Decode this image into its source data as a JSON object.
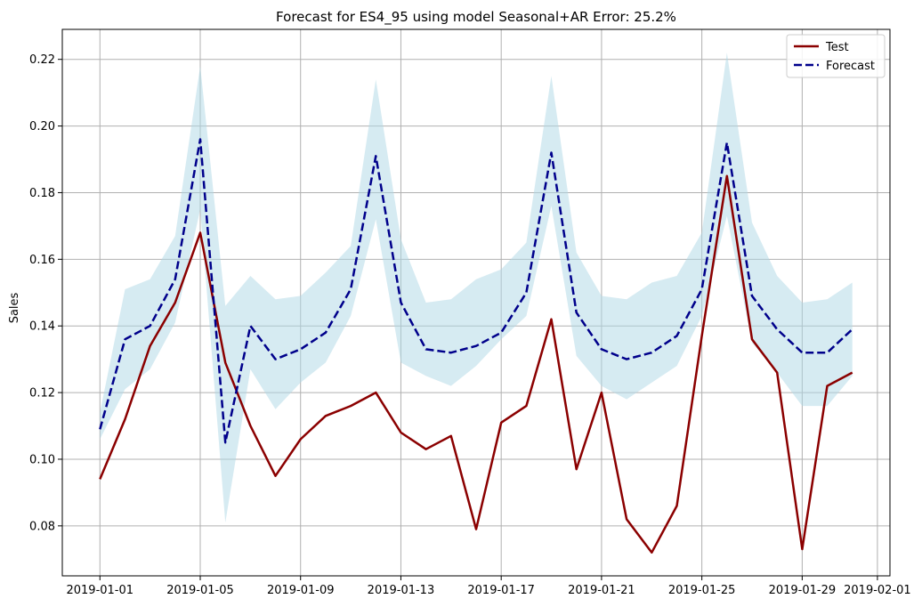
{
  "chart_data": {
    "type": "line",
    "title": "Forecast for ES4_95 using model Seasonal+AR Error: 25.2%",
    "xlabel": "",
    "ylabel": "Sales",
    "x_ticks": [
      "2019-01-01",
      "2019-01-05",
      "2019-01-09",
      "2019-01-13",
      "2019-01-17",
      "2019-01-21",
      "2019-01-25",
      "2019-01-29",
      "2019-02-01"
    ],
    "y_ticks": [
      "0.08",
      "0.10",
      "0.12",
      "0.14",
      "0.16",
      "0.18",
      "0.20",
      "0.22"
    ],
    "y_range": [
      0.065,
      0.229
    ],
    "grid": true,
    "legend_position": "top-right",
    "x": [
      "2019-01-01",
      "2019-01-02",
      "2019-01-03",
      "2019-01-04",
      "2019-01-05",
      "2019-01-06",
      "2019-01-07",
      "2019-01-08",
      "2019-01-09",
      "2019-01-10",
      "2019-01-11",
      "2019-01-12",
      "2019-01-13",
      "2019-01-14",
      "2019-01-15",
      "2019-01-16",
      "2019-01-17",
      "2019-01-18",
      "2019-01-19",
      "2019-01-20",
      "2019-01-21",
      "2019-01-22",
      "2019-01-23",
      "2019-01-24",
      "2019-01-25",
      "2019-01-26",
      "2019-01-27",
      "2019-01-28",
      "2019-01-29",
      "2019-01-30",
      "2019-01-31"
    ],
    "series": [
      {
        "name": "Test",
        "color": "#8b0000",
        "style": "solid",
        "values": [
          0.094,
          0.112,
          0.134,
          0.147,
          0.168,
          0.129,
          0.11,
          0.095,
          0.106,
          0.113,
          0.116,
          0.12,
          0.108,
          0.103,
          0.107,
          0.079,
          0.111,
          0.116,
          0.142,
          0.097,
          0.12,
          0.082,
          0.072,
          0.086,
          0.137,
          0.185,
          0.136,
          0.126,
          0.073,
          0.122,
          0.126
        ]
      },
      {
        "name": "Forecast",
        "color": "#00008b",
        "style": "dashed",
        "values": [
          0.109,
          0.136,
          0.14,
          0.154,
          0.196,
          0.105,
          0.14,
          0.13,
          0.133,
          0.138,
          0.151,
          0.191,
          0.147,
          0.133,
          0.132,
          0.134,
          0.138,
          0.15,
          0.192,
          0.144,
          0.133,
          0.13,
          0.132,
          0.137,
          0.151,
          0.195,
          0.149,
          0.139,
          0.132,
          0.132,
          0.139
        ]
      }
    ],
    "band": {
      "color": "#add8e6",
      "lower": [
        0.106,
        0.121,
        0.127,
        0.141,
        0.175,
        0.081,
        0.127,
        0.115,
        0.123,
        0.129,
        0.143,
        0.172,
        0.129,
        0.125,
        0.122,
        0.128,
        0.136,
        0.143,
        0.176,
        0.131,
        0.122,
        0.118,
        0.123,
        0.128,
        0.143,
        0.173,
        0.135,
        0.126,
        0.116,
        0.116,
        0.125
      ],
      "upper": [
        0.114,
        0.151,
        0.154,
        0.167,
        0.218,
        0.146,
        0.155,
        0.148,
        0.149,
        0.156,
        0.164,
        0.214,
        0.166,
        0.147,
        0.148,
        0.154,
        0.157,
        0.165,
        0.215,
        0.162,
        0.149,
        0.148,
        0.153,
        0.155,
        0.168,
        0.222,
        0.171,
        0.155,
        0.147,
        0.148,
        0.153
      ]
    }
  }
}
